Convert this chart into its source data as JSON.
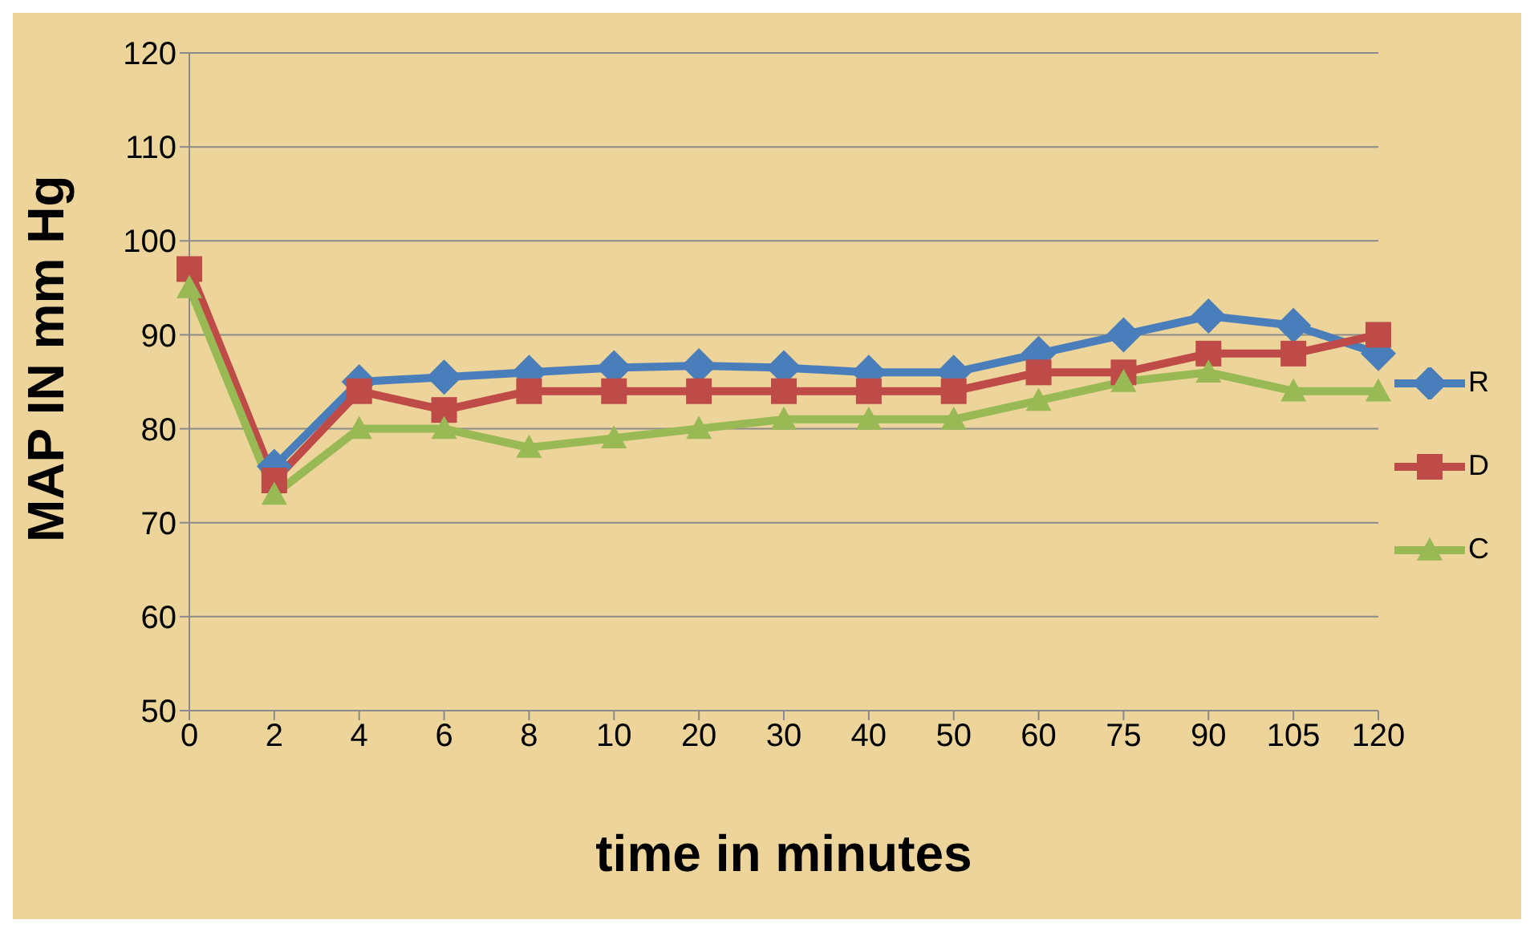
{
  "chart_data": {
    "type": "line",
    "xlabel": "time in minutes",
    "ylabel": "MAP IN mm Hg",
    "categories": [
      "0",
      "2",
      "4",
      "6",
      "8",
      "10",
      "20",
      "30",
      "40",
      "50",
      "60",
      "75",
      "90",
      "105",
      "120"
    ],
    "series": [
      {
        "name": "R",
        "color": "#4a7ebb",
        "marker": "diamond",
        "values": [
          null,
          76,
          85,
          85.5,
          86,
          86.5,
          86.7,
          86.5,
          86,
          86,
          88,
          90,
          92,
          91,
          88
        ]
      },
      {
        "name": "D",
        "color": "#be4b48",
        "marker": "square",
        "values": [
          97,
          74.5,
          84,
          82,
          84,
          84,
          84,
          84,
          84,
          84,
          86,
          86,
          88,
          88,
          90
        ]
      },
      {
        "name": "C",
        "color": "#98b954",
        "marker": "triangle",
        "values": [
          95,
          73,
          80,
          80,
          78,
          79,
          80,
          81,
          81,
          81,
          83,
          85,
          86,
          84,
          84
        ]
      }
    ],
    "ylim": [
      50,
      120
    ],
    "yticks": [
      50,
      60,
      70,
      80,
      90,
      100,
      110,
      120
    ],
    "grid": "y",
    "legend": "right"
  }
}
